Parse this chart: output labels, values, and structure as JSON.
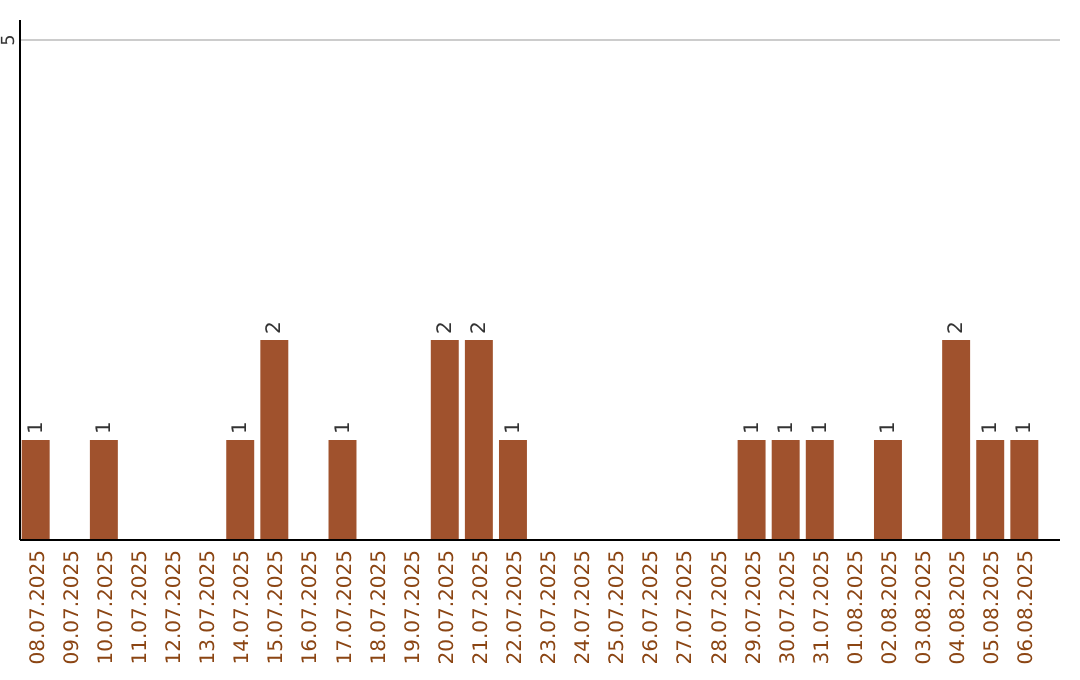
{
  "chart_data": {
    "type": "bar",
    "categories": [
      "08.07.2025",
      "09.07.2025",
      "10.07.2025",
      "11.07.2025",
      "12.07.2025",
      "13.07.2025",
      "14.07.2025",
      "15.07.2025",
      "16.07.2025",
      "17.07.2025",
      "18.07.2025",
      "19.07.2025",
      "20.07.2025",
      "21.07.2025",
      "22.07.2025",
      "23.07.2025",
      "24.07.2025",
      "25.07.2025",
      "26.07.2025",
      "27.07.2025",
      "28.07.2025",
      "29.07.2025",
      "30.07.2025",
      "31.07.2025",
      "01.08.2025",
      "02.08.2025",
      "03.08.2025",
      "04.08.2025",
      "05.08.2025",
      "06.08.2025"
    ],
    "values": [
      1,
      null,
      1,
      null,
      null,
      null,
      1,
      2,
      null,
      1,
      null,
      null,
      2,
      2,
      1,
      null,
      null,
      null,
      null,
      null,
      null,
      1,
      1,
      1,
      null,
      1,
      null,
      2,
      1,
      1
    ],
    "color": "#a0522d",
    "ylim": [
      0,
      5.2
    ],
    "yticks": [
      5
    ],
    "grid": "y",
    "data_labels": true
  }
}
